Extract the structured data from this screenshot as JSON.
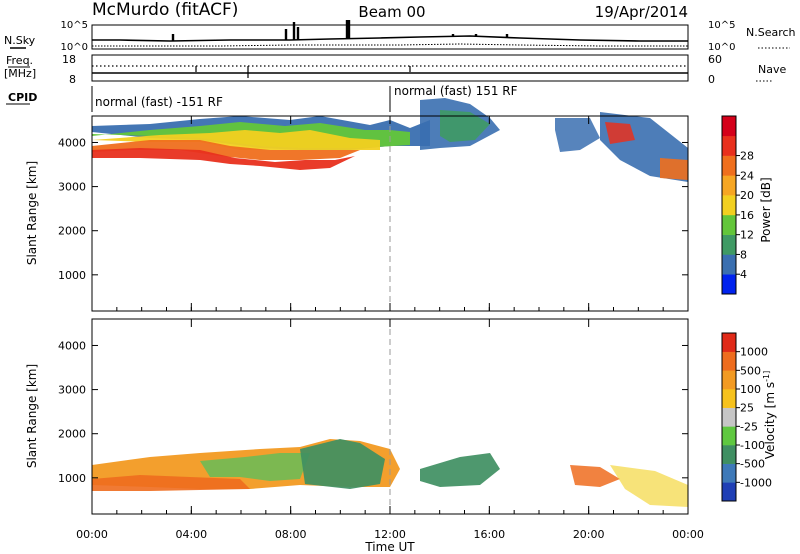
{
  "header": {
    "station": "McMurdo (fitACF)",
    "beam": "Beam 00",
    "date": "19/Apr/2014"
  },
  "noise_panel": {
    "left_label": "N.Sky",
    "right_label": "N.Search",
    "left_ticks": [
      "10^5",
      "10^0"
    ],
    "right_ticks": [
      "10^5",
      "10^0"
    ]
  },
  "freq_panel": {
    "left_label_top": "Freq.",
    "left_label_bottom": "[MHz]",
    "right_label": "Nave",
    "left_ticks": [
      "18",
      "8"
    ],
    "right_ticks": [
      "60",
      "0"
    ]
  },
  "cpid": {
    "label": "CPID",
    "segments": [
      {
        "text": "normal (fast) -151 RF",
        "start_hour": 0
      },
      {
        "text": "normal (fast) 151 RF",
        "start_hour": 12
      }
    ]
  },
  "chart_data": [
    {
      "type": "heatmap",
      "title": "",
      "xlabel": "Time UT",
      "ylabel": "Slant Range [km]",
      "xlim": [
        0,
        24
      ],
      "ylim": [
        180,
        4600
      ],
      "yticks": [
        1000,
        2000,
        3000,
        4000
      ],
      "colorbar": {
        "label": "Power [dB]",
        "ticks": [
          "4",
          "8",
          "12",
          "16",
          "20",
          "24",
          "28"
        ],
        "colors": [
          "#0022ee",
          "#3a6fb0",
          "#3f9a64",
          "#63c63a",
          "#f2d020",
          "#f6a623",
          "#ef6f1d",
          "#e8301d",
          "#d4001a"
        ]
      }
    },
    {
      "type": "heatmap",
      "title": "",
      "xlabel": "Time UT",
      "ylabel": "Slant Range [km]",
      "xlim": [
        0,
        24
      ],
      "ylim": [
        180,
        4600
      ],
      "yticks": [
        1000,
        2000,
        3000,
        4000
      ],
      "colorbar": {
        "label": "Velocity [m s^-1]",
        "ticks": [
          "1000",
          "500",
          "100",
          "25",
          "-25",
          "-100",
          "-500",
          "-1000"
        ],
        "colors": [
          "#1f3fb5",
          "#3e79b8",
          "#3f8f62",
          "#5fc840",
          "#c6c6c6",
          "#f6c21d",
          "#f29a22",
          "#ee6c1e",
          "#e02a18"
        ]
      }
    }
  ],
  "x_axis": {
    "tick_labels": [
      "00:00",
      "04:00",
      "08:00",
      "12:00",
      "16:00",
      "20:00",
      "00:00"
    ],
    "tick_hours": [
      0,
      4,
      8,
      12,
      16,
      20,
      24
    ],
    "label": "Time UT"
  }
}
